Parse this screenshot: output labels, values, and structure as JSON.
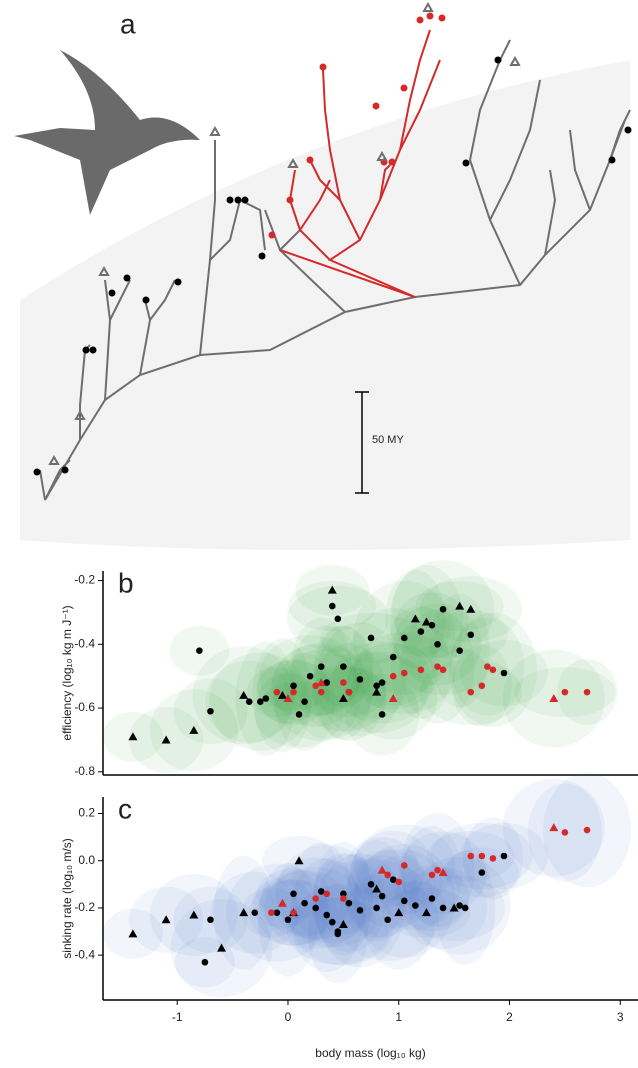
{
  "panel_a": {
    "label": "a",
    "scale_bar": "50 MY"
  },
  "chart_data": [
    {
      "type": "scatter",
      "label": "b",
      "ylabel": "efficiency (log₁₀ kg m J⁻¹)",
      "xlim": [
        -1.67,
        3.16
      ],
      "ylim": [
        -0.81,
        -0.17
      ],
      "yticks": [
        -0.8,
        -0.6,
        -0.4,
        -0.2
      ],
      "ellipse_color": "#2e9c3a",
      "series": [
        {
          "color": "#000000",
          "marker": "triangle",
          "x": [
            -1.4,
            -1.1,
            -0.85,
            -0.4,
            -0.05,
            0.4,
            0.5,
            0.8,
            1.15,
            1.25,
            1.55,
            1.65
          ],
          "values": [
            -0.69,
            -0.7,
            -0.67,
            -0.56,
            -0.56,
            -0.23,
            -0.57,
            -0.55,
            -0.32,
            -0.33,
            -0.28,
            -0.29
          ]
        },
        {
          "color": "#000000",
          "marker": "circle",
          "x": [
            -0.8,
            -0.7,
            -0.35,
            -0.25,
            -0.2,
            0.05,
            0.1,
            0.2,
            0.3,
            0.35,
            0.4,
            0.45,
            0.5,
            0.55,
            0.65,
            0.75,
            0.8,
            0.85,
            0.95,
            1.05,
            1.2,
            1.3,
            1.35,
            1.4,
            1.55,
            1.65,
            1.95,
            0.85,
            0.15
          ],
          "values": [
            -0.42,
            -0.61,
            -0.58,
            -0.58,
            -0.57,
            -0.53,
            -0.62,
            -0.5,
            -0.47,
            -0.52,
            -0.28,
            -0.32,
            -0.47,
            -0.55,
            -0.51,
            -0.38,
            -0.53,
            -0.62,
            -0.44,
            -0.38,
            -0.36,
            -0.34,
            -0.4,
            -0.29,
            -0.42,
            -0.37,
            -0.49,
            -0.52,
            -0.58
          ]
        },
        {
          "color": "#d42a2a",
          "marker": "circle",
          "x": [
            -0.1,
            0.05,
            0.25,
            0.3,
            0.5,
            0.55,
            0.95,
            1.05,
            1.2,
            1.35,
            1.4,
            1.65,
            1.75,
            1.8,
            1.85,
            2.5,
            2.7
          ],
          "values": [
            -0.55,
            -0.55,
            -0.53,
            -0.55,
            -0.52,
            -0.55,
            -0.5,
            -0.49,
            -0.48,
            -0.47,
            -0.48,
            -0.55,
            -0.53,
            -0.47,
            -0.48,
            -0.55,
            -0.55
          ]
        },
        {
          "color": "#d42a2a",
          "marker": "triangle",
          "x": [
            0.0,
            0.3,
            0.95,
            2.4
          ],
          "values": [
            -0.57,
            -0.52,
            -0.57,
            -0.57
          ]
        }
      ]
    },
    {
      "type": "scatter",
      "label": "c",
      "ylabel": "sinking rate (log₁₀ m/s)",
      "xlabel": "body mass (log₁₀ kg)",
      "xlim": [
        -1.67,
        3.16
      ],
      "xticks": [
        -1,
        0,
        1,
        2,
        3
      ],
      "ylim": [
        -0.59,
        0.27
      ],
      "yticks": [
        -0.4,
        -0.2,
        {
          "value": 0,
          "label": "0.0"
        },
        0.2
      ],
      "ellipse_color": "#4a6cc0",
      "series": [
        {
          "color": "#000000",
          "marker": "triangle",
          "x": [
            -1.4,
            -1.1,
            -0.85,
            -0.6,
            -0.4,
            0.1,
            0.05,
            0.5,
            0.8,
            1.0,
            1.25,
            1.5
          ],
          "values": [
            -0.31,
            -0.25,
            -0.23,
            -0.37,
            -0.22,
            0.0,
            -0.22,
            -0.27,
            -0.12,
            -0.22,
            -0.22,
            -0.2
          ]
        },
        {
          "color": "#000000",
          "marker": "circle",
          "x": [
            -0.75,
            -0.7,
            -0.3,
            -0.1,
            0.0,
            0.05,
            0.15,
            0.25,
            0.3,
            0.35,
            0.4,
            0.45,
            0.5,
            0.55,
            0.65,
            0.75,
            0.8,
            0.85,
            0.95,
            1.05,
            1.15,
            1.3,
            1.4,
            1.55,
            1.6,
            1.75,
            1.95,
            0.9,
            0.45
          ],
          "values": [
            -0.43,
            -0.25,
            -0.22,
            -0.22,
            -0.25,
            -0.14,
            -0.18,
            -0.2,
            -0.13,
            -0.23,
            -0.26,
            -0.3,
            -0.14,
            -0.18,
            -0.21,
            -0.1,
            -0.2,
            -0.15,
            -0.08,
            -0.17,
            -0.19,
            -0.16,
            -0.2,
            -0.19,
            -0.2,
            -0.05,
            0.02,
            -0.25,
            -0.31
          ]
        },
        {
          "color": "#d42a2a",
          "marker": "circle",
          "x": [
            -0.15,
            0.05,
            0.25,
            0.35,
            0.5,
            0.9,
            1.0,
            1.05,
            1.3,
            1.35,
            1.65,
            1.75,
            1.85,
            2.5,
            2.7
          ],
          "values": [
            -0.22,
            -0.22,
            -0.16,
            -0.14,
            -0.16,
            -0.06,
            -0.09,
            -0.02,
            -0.06,
            -0.04,
            0.02,
            0.02,
            0.01,
            0.12,
            0.13
          ]
        },
        {
          "color": "#d42a2a",
          "marker": "triangle",
          "x": [
            -0.05,
            0.85,
            1.4,
            2.4
          ],
          "values": [
            -0.18,
            -0.04,
            -0.05,
            0.14
          ]
        }
      ]
    }
  ]
}
